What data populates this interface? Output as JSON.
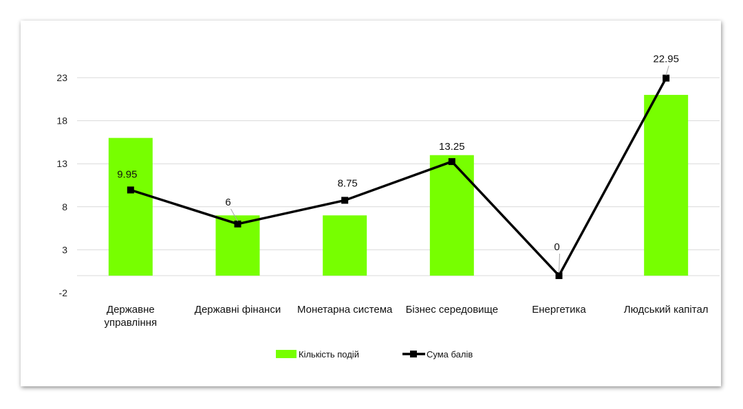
{
  "chart_data": {
    "type": "bar+line",
    "categories": [
      [
        "Державне",
        "управління"
      ],
      [
        "Державні фінанси"
      ],
      [
        "Монетарна система"
      ],
      [
        "Бізнес середовище"
      ],
      [
        "Енергетика"
      ],
      [
        "Людський капітал"
      ]
    ],
    "series": [
      {
        "name": "Кількість подій",
        "type": "bar",
        "color": "#77ff00",
        "values": [
          16,
          7,
          7,
          14,
          0,
          21
        ]
      },
      {
        "name": "Сума балів",
        "type": "line",
        "color": "#000000",
        "marker": "square",
        "values": [
          9.95,
          6,
          8.75,
          13.25,
          0,
          22.95
        ],
        "labels": [
          "9.95",
          "6",
          "8.75",
          "13.25",
          "0",
          "22.95"
        ]
      }
    ],
    "yticks": [
      -2,
      3,
      8,
      13,
      18,
      23
    ],
    "ylim": [
      -2,
      23
    ],
    "grid": true,
    "legend_position": "bottom"
  }
}
